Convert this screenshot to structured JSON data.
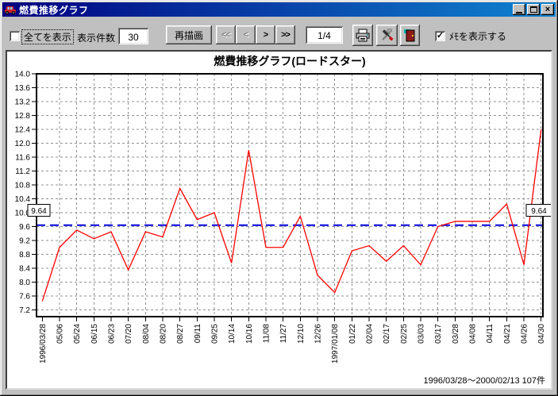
{
  "window": {
    "title": "燃費推移グラフ",
    "controls": {
      "close_glyph": "×"
    }
  },
  "toolbar": {
    "show_all": {
      "label": "全てを表示",
      "checked": false,
      "check_glyph": ""
    },
    "count": {
      "label": "表示件数",
      "value": "30"
    },
    "redraw_label": "再描画",
    "nav": {
      "first": "<<",
      "prev": "<",
      "next": ">",
      "last": ">>"
    },
    "page": "1/4",
    "memo": {
      "label": "ﾒﾓを表示する",
      "checked": true,
      "check_glyph": "✓"
    }
  },
  "chart_data": {
    "type": "line",
    "title": "燃費推移グラフ(ロードスター)",
    "categories": [
      "1996/03/28",
      "05/06",
      "05/24",
      "06/15",
      "06/23",
      "07/20",
      "08/04",
      "08/20",
      "08/27",
      "09/11",
      "09/25",
      "10/14",
      "10/16",
      "11/08",
      "11/27",
      "12/10",
      "12/26",
      "1997/01/08",
      "01/22",
      "02/04",
      "02/17",
      "02/25",
      "03/03",
      "03/17",
      "03/28",
      "04/08",
      "04/11",
      "04/21",
      "04/26",
      "04/30"
    ],
    "series": [
      {
        "name": "燃費",
        "color": "#ff0000",
        "values": [
          7.45,
          9.0,
          9.5,
          9.25,
          9.45,
          8.35,
          9.45,
          9.3,
          10.7,
          9.8,
          10.0,
          8.55,
          11.8,
          9.0,
          9.0,
          9.9,
          8.2,
          7.7,
          8.9,
          9.05,
          8.6,
          9.05,
          8.5,
          9.6,
          9.75,
          9.75,
          9.75,
          10.25,
          8.5,
          12.4
        ]
      }
    ],
    "reference_line": {
      "value": 9.64,
      "label": "9.64",
      "color": "#0000dd"
    },
    "ylim": [
      7.2,
      14.0
    ],
    "ytick_step": 0.4,
    "grid": true,
    "legend_position": "none",
    "footer": "1996/03/28〜2000/02/13  107件"
  },
  "colors": {
    "titlebar_start": "#000080",
    "titlebar_end": "#1084d0",
    "window_bg": "#c0c0c0",
    "grid": "#909090"
  }
}
